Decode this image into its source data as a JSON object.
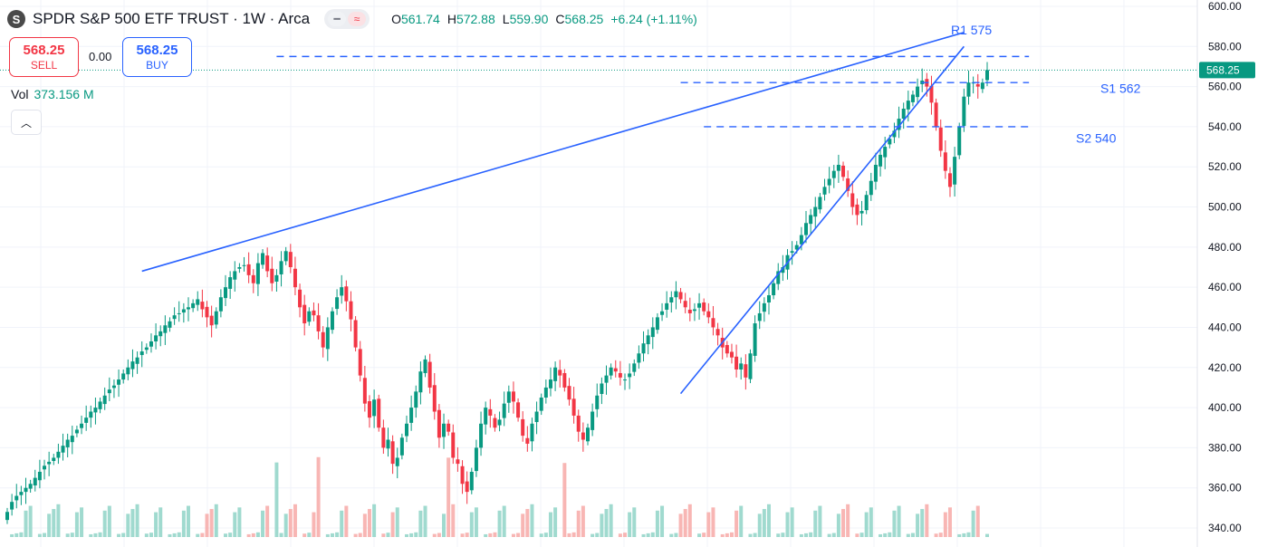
{
  "header": {
    "symbol_logo": "S",
    "title": "SPDR S&P 500 ETF TRUST · 1W · Arca",
    "icons": [
      "minus-icon",
      "approx-icon"
    ],
    "ohlc": {
      "o_label": "O",
      "o_value": "561.74",
      "h_label": "H",
      "h_value": "572.88",
      "l_label": "L",
      "l_value": "559.90",
      "c_label": "C",
      "c_value": "568.25",
      "change": "+6.24 (+1.11%)"
    }
  },
  "trade": {
    "sell_price": "568.25",
    "sell_label": "SELL",
    "spread": "0.00",
    "buy_price": "568.25",
    "buy_label": "BUY"
  },
  "volume": {
    "label": "Vol",
    "value": "373.156 M"
  },
  "collapse_icon": "chevron-up-icon",
  "colors": {
    "up": "#089981",
    "down": "#f23645",
    "drawing": "#2962ff",
    "vol_up": "#8fd3c7",
    "vol_down": "#f7a9a7"
  },
  "chart_data": {
    "type": "candlestick",
    "title": "SPDR S&P 500 ETF TRUST · 1W · Arca",
    "price_axis": {
      "ticks": [
        600,
        580,
        560,
        540,
        520,
        500,
        480,
        460,
        440,
        420,
        400,
        380,
        360,
        340
      ],
      "range": [
        335,
        605
      ]
    },
    "last_price_label": "568.25",
    "last_price": 568.25,
    "closes": [
      348,
      353,
      356,
      358,
      360,
      362,
      365,
      368,
      371,
      373,
      375,
      378,
      381,
      384,
      386,
      389,
      392,
      395,
      398,
      400,
      403,
      406,
      409,
      411,
      414,
      417,
      420,
      423,
      425,
      428,
      430,
      433,
      436,
      438,
      441,
      443,
      446,
      447,
      449,
      450,
      452,
      454,
      449,
      445,
      441,
      448,
      455,
      460,
      465,
      468,
      470,
      471,
      466,
      462,
      472,
      477,
      468,
      462,
      466,
      473,
      478,
      470,
      460,
      450,
      442,
      448,
      446,
      438,
      430,
      440,
      448,
      455,
      460,
      453,
      444,
      430,
      416,
      402,
      395,
      404,
      390,
      380,
      384,
      372,
      375,
      385,
      392,
      400,
      408,
      418,
      424,
      410,
      398,
      385,
      392,
      388,
      375,
      372,
      362,
      358,
      368,
      380,
      392,
      400,
      396,
      390,
      394,
      402,
      408,
      403,
      395,
      386,
      382,
      392,
      398,
      405,
      410,
      414,
      420,
      416,
      410,
      404,
      396,
      388,
      384,
      390,
      398,
      406,
      412,
      416,
      420,
      418,
      415,
      414,
      417,
      422,
      427,
      432,
      436,
      440,
      445,
      448,
      452,
      455,
      458,
      454,
      450,
      447,
      449,
      452,
      448,
      445,
      440,
      436,
      430,
      427,
      425,
      419,
      422,
      415,
      427,
      442,
      447,
      452,
      456,
      462,
      468,
      470,
      476,
      478,
      481,
      486,
      492,
      496,
      500,
      505,
      510,
      514,
      518,
      521,
      515,
      508,
      500,
      496,
      498,
      506,
      513,
      521,
      526,
      530,
      534,
      538,
      544,
      549,
      553,
      556,
      560,
      563,
      560,
      552,
      540,
      528,
      518,
      510,
      525,
      540,
      555,
      562,
      562,
      560,
      562,
      568.25
    ],
    "ranges": [
      [
        348,
        352
      ],
      [
        345,
        360
      ]
    ],
    "volume_note": "volume bars shown beneath candles",
    "drawings": [
      {
        "type": "trendline",
        "from": {
          "bar": 29,
          "price": 468
        },
        "to": {
          "bar": 206,
          "price": 587
        }
      },
      {
        "type": "trendline",
        "from": {
          "bar": 145,
          "price": 407
        },
        "to": {
          "bar": 206,
          "price": 580
        }
      },
      {
        "type": "hline",
        "label": "R1 575",
        "price": 575,
        "from_bar": 58,
        "to_bar": 220
      },
      {
        "type": "hline",
        "label": "S1 562",
        "price": 562,
        "from_bar": 145,
        "to_bar": 220
      },
      {
        "type": "hline",
        "label": "S2 540",
        "price": 540,
        "from_bar": 150,
        "to_bar": 220
      }
    ],
    "annotations": [
      "R1 575",
      "S1 562",
      "S2 540"
    ]
  }
}
